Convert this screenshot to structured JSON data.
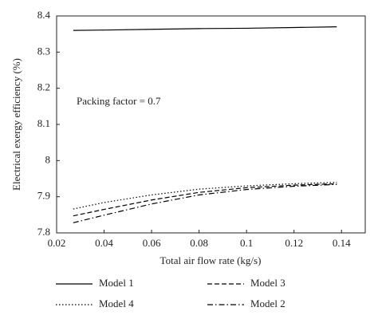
{
  "chart_data": {
    "type": "line",
    "x_label": "Total air flow rate (kg/s)",
    "y_label": "Electrical exergy efficiency (%)",
    "annotation": "Packing factor = 0.7",
    "x": [
      0.027,
      0.04,
      0.06,
      0.08,
      0.1,
      0.12,
      0.138
    ],
    "series": [
      {
        "name": "Model 1",
        "color": "#000000",
        "dash": "solid",
        "values": [
          8.36,
          8.361,
          8.363,
          8.365,
          8.366,
          8.368,
          8.37
        ]
      },
      {
        "name": "Model 3",
        "color": "#000000",
        "dash": "dashed",
        "values": [
          7.847,
          7.865,
          7.891,
          7.912,
          7.925,
          7.932,
          7.936
        ]
      },
      {
        "name": "Model 4",
        "color": "#000000",
        "dash": "dotted",
        "values": [
          7.866,
          7.884,
          7.905,
          7.921,
          7.93,
          7.936,
          7.94
        ]
      },
      {
        "name": "Model 2",
        "color": "#000000",
        "dash": "dashdot",
        "values": [
          7.828,
          7.849,
          7.88,
          7.905,
          7.92,
          7.929,
          7.934
        ]
      }
    ],
    "xlim": [
      0.02,
      0.15
    ],
    "xticks": [
      0.02,
      0.04,
      0.06,
      0.08,
      0.1,
      0.12,
      0.14
    ],
    "ylim": [
      7.8,
      8.4
    ],
    "yticks": [
      7.8,
      7.9,
      8,
      8.1,
      8.2,
      8.3,
      8.4
    ],
    "grid": false,
    "legend": "bottom"
  }
}
